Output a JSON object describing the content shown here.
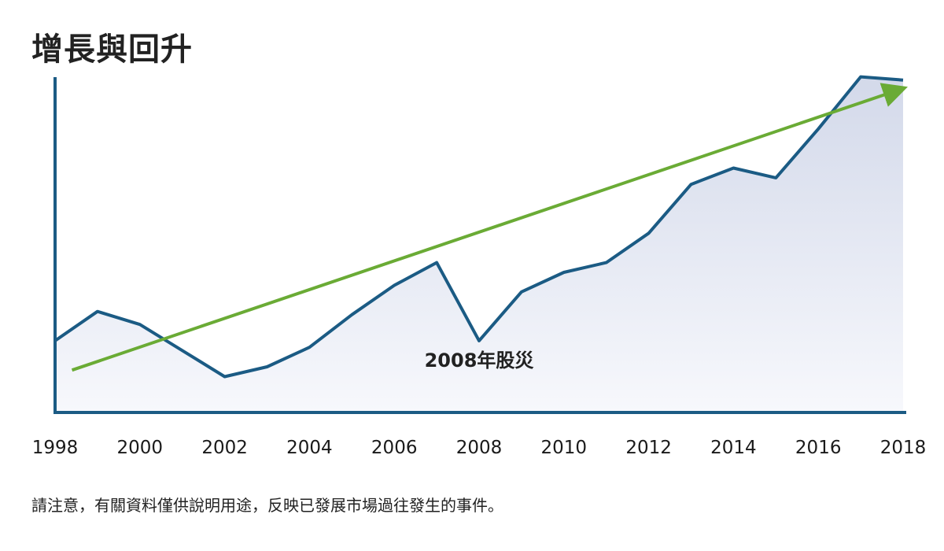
{
  "title": "增長與回升",
  "footnote": "請注意，有關資料僅供說明用途，反映已發展市場過往發生的事件。",
  "colors": {
    "series_line": "#1b5b84",
    "area_top": "#d3d9ea",
    "area_bottom": "#f7f8fc",
    "trend_arrow": "#6aab35",
    "axis": "#1b5b84"
  },
  "chart_data": {
    "type": "line",
    "title": "增長與回升",
    "xlabel": "",
    "ylabel": "",
    "x_ticks": [
      "1998",
      "2000",
      "2002",
      "2004",
      "2006",
      "2008",
      "2010",
      "2012",
      "2014",
      "2016",
      "2018"
    ],
    "xlim": [
      1998,
      2018
    ],
    "ylim": [
      0,
      100
    ],
    "y_axis_labels_shown": false,
    "grid": false,
    "series": [
      {
        "x": [
          1998,
          1999,
          2000,
          2001,
          2002,
          2003,
          2004,
          2005,
          2006,
          2007,
          2008,
          2009,
          2010,
          2011,
          2012,
          2013,
          2014,
          2015,
          2016,
          2017,
          2018
        ],
        "y": [
          22,
          31,
          27,
          19,
          11,
          14,
          20,
          30,
          39,
          46,
          22,
          37,
          43,
          46,
          55,
          70,
          75,
          72,
          87,
          103,
          102
        ],
        "fill": "area"
      }
    ],
    "trend_arrow": {
      "x": [
        1998.4,
        2017.9
      ],
      "y": [
        13,
        99
      ]
    },
    "annotations": [
      {
        "text": "2008年股災",
        "x": 2008,
        "y": 14
      }
    ]
  }
}
